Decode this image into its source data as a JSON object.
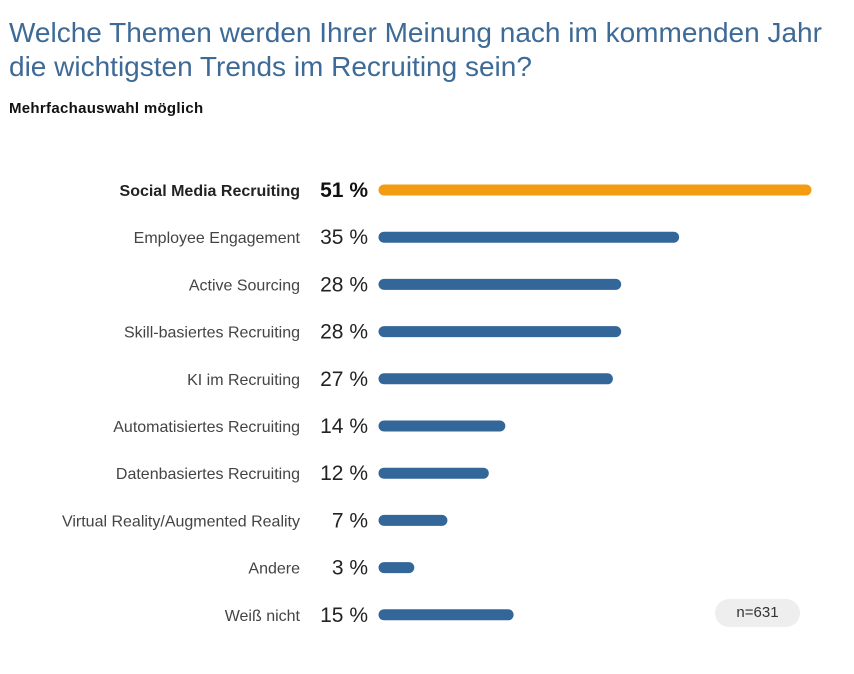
{
  "chart_data": {
    "type": "bar",
    "orientation": "horizontal",
    "title": "Welche Themen werden Ihrer Meinung nach im kommenden Jahr die wichtigsten Trends im Recruiting sein?",
    "subtitle": "Mehrfachauswahl möglich",
    "categories": [
      "Social Media Recruiting",
      "Employee Engagement",
      "Active Sourcing",
      "Skill-basiertes Recruiting",
      "KI im Recruiting",
      "Automatisiertes Recruiting",
      "Datenbasiertes Recruiting",
      "Virtual Reality/Augmented Reality",
      "Andere",
      "Weiß nicht"
    ],
    "values": [
      51,
      35,
      28,
      28,
      27,
      14,
      12,
      7,
      3,
      15
    ],
    "value_labels": [
      "51 %",
      "35 %",
      "28 %",
      "28 %",
      "27 %",
      "14 %",
      "12 %",
      "7 %",
      "3 %",
      "15 %"
    ],
    "highlight_index": 0,
    "colors": {
      "highlight": "#f39c12",
      "bar": "#336699"
    },
    "xlim": [
      0,
      51
    ],
    "grid": false,
    "sample_size": "n=631"
  }
}
